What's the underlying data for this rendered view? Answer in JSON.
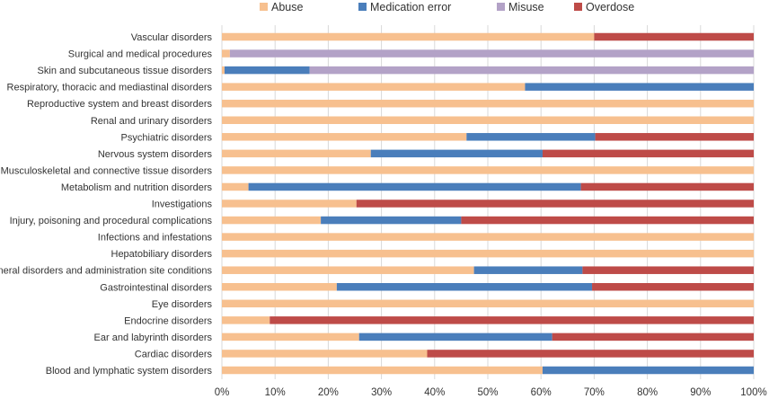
{
  "chart_data": {
    "type": "bar",
    "orientation": "horizontal",
    "stacked": "percent",
    "title": "",
    "xlabel": "",
    "ylabel": "",
    "xlim": [
      0,
      100
    ],
    "x_ticks": [
      "0%",
      "10%",
      "20%",
      "30%",
      "40%",
      "50%",
      "60%",
      "70%",
      "80%",
      "90%",
      "100%"
    ],
    "legend_position": "top-center",
    "categories": [
      "Vascular disorders",
      "Surgical and medical procedures",
      "Skin and subcutaneous tissue disorders",
      "Respiratory, thoracic and mediastinal disorders",
      "Reproductive system and breast disorders",
      "Renal and urinary disorders",
      "Psychiatric disorders",
      "Nervous system disorders",
      "Musculoskeletal and connective tissue disorders",
      "Metabolism and nutrition disorders",
      "Investigations",
      "Injury, poisoning and procedural complications",
      "Infections and infestations",
      "Hepatobiliary disorders",
      "General disorders and administration site conditions",
      "Gastrointestinal disorders",
      "Eye disorders",
      "Endocrine disorders",
      "Ear and labyrinth disorders",
      "Cardiac disorders",
      "Blood and lymphatic system disorders"
    ],
    "series": [
      {
        "name": "Abuse",
        "color": "#F7C08F",
        "values": [
          70,
          1.5,
          0.5,
          57,
          100,
          100,
          46,
          28,
          100,
          5,
          25.3,
          18.6,
          100,
          100,
          47.4,
          21.6,
          100,
          9,
          25.8,
          38.6,
          60.3
        ]
      },
      {
        "name": "Medication error",
        "color": "#4A7EBB",
        "values": [
          0,
          0,
          16,
          43,
          0,
          0,
          24.2,
          32.3,
          0,
          62.5,
          0,
          26.4,
          0,
          0,
          20.4,
          48,
          0,
          0,
          36.3,
          0,
          39.7
        ]
      },
      {
        "name": "Misuse",
        "color": "#B3A2C7",
        "values": [
          0,
          98.5,
          83.5,
          0,
          0,
          0,
          0,
          0,
          0,
          0,
          0,
          0,
          0,
          0,
          0,
          0,
          0,
          0,
          0,
          0,
          0
        ]
      },
      {
        "name": "Overdose",
        "color": "#BE4B48",
        "values": [
          30,
          0,
          0,
          0,
          0,
          0,
          29.8,
          39.7,
          0,
          32.5,
          74.7,
          55,
          0,
          0,
          32.2,
          30.4,
          0,
          91,
          37.9,
          61.4,
          0
        ]
      }
    ]
  }
}
